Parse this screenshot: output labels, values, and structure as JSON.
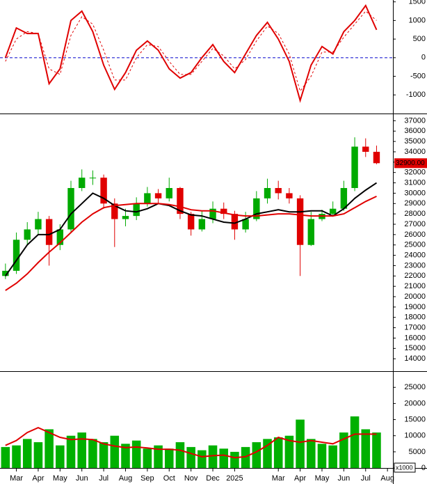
{
  "chart_data": [
    {
      "type": "line",
      "ylim": [
        -1500,
        1550
      ],
      "yticks": [
        -1000,
        -500,
        0,
        500,
        1000,
        1500
      ],
      "reference_line": 0,
      "reference_color": "#0000cc",
      "series": [
        {
          "color": "#e00000",
          "line_style": "solid",
          "values": [
            0,
            800,
            650,
            650,
            -700,
            -300,
            1000,
            1250,
            700,
            -200,
            -850,
            -400,
            200,
            450,
            200,
            -300,
            -550,
            -400,
            0,
            350,
            -100,
            -400,
            100,
            600,
            950,
            500,
            -100,
            -1150,
            -200,
            300,
            100,
            700,
            1000,
            1400,
            750,
            null
          ]
        },
        {
          "color": "#e00000",
          "line_style": "dashed",
          "values": [
            -100,
            500,
            700,
            650,
            -300,
            -450,
            600,
            1100,
            900,
            200,
            -600,
            -600,
            0,
            350,
            300,
            -100,
            -450,
            -450,
            -100,
            250,
            50,
            -300,
            -50,
            450,
            850,
            650,
            100,
            -900,
            -500,
            150,
            150,
            550,
            900,
            1250,
            1000,
            null
          ]
        }
      ]
    },
    {
      "type": "candlestick",
      "ylim": [
        12800,
        37700
      ],
      "yticks": [
        14000,
        15000,
        16000,
        17000,
        18000,
        19000,
        20000,
        21000,
        22000,
        23000,
        24000,
        25000,
        26000,
        27000,
        28000,
        29000,
        30000,
        31000,
        32000,
        33000,
        34000,
        35000,
        36000,
        37000
      ],
      "up_color": "#00aa00",
      "down_color": "#e00000",
      "last_value_label": "32900.00",
      "last_value_color": "#e00000",
      "open": [
        22000,
        22500,
        25500,
        26500,
        27500,
        25000,
        26500,
        30500,
        31500,
        31500,
        29000,
        27500,
        27800,
        29000,
        30000,
        29500,
        30500,
        28000,
        26500,
        27500,
        28500,
        28000,
        26500,
        27500,
        29500,
        30500,
        30000,
        29500,
        25000,
        27500,
        28000,
        28500,
        30500,
        34500,
        34000,
        null
      ],
      "high": [
        23200,
        26200,
        27200,
        28200,
        27800,
        27000,
        31200,
        32300,
        32200,
        31800,
        29500,
        28500,
        29600,
        30600,
        30400,
        31500,
        30600,
        28200,
        28300,
        29200,
        29100,
        28300,
        28200,
        30200,
        31400,
        31200,
        30500,
        29800,
        28200,
        28400,
        29200,
        31200,
        35400,
        35300,
        34600,
        null
      ],
      "low": [
        21700,
        22200,
        25000,
        26000,
        23000,
        24500,
        26200,
        30200,
        30800,
        28500,
        24800,
        26800,
        27400,
        28700,
        29000,
        29200,
        27500,
        25900,
        26300,
        27100,
        27500,
        25500,
        26200,
        27300,
        29000,
        29400,
        29000,
        22000,
        24900,
        27300,
        27800,
        28300,
        30200,
        33500,
        32800,
        null
      ],
      "close": [
        22500,
        25500,
        26500,
        27500,
        25000,
        26500,
        30500,
        31500,
        31500,
        29000,
        27500,
        27800,
        29000,
        30000,
        29500,
        30500,
        28000,
        26500,
        27500,
        28500,
        28000,
        26500,
        27500,
        29500,
        30500,
        30000,
        29500,
        25000,
        27500,
        28000,
        28500,
        30500,
        34500,
        34000,
        32900,
        null
      ],
      "lines": [
        {
          "color": "#000000",
          "values": [
            22000,
            23500,
            25000,
            26000,
            26000,
            26500,
            28000,
            29000,
            30000,
            29500,
            28800,
            28300,
            28200,
            28500,
            29000,
            28800,
            28300,
            27900,
            27800,
            27500,
            27200,
            27100,
            27500,
            28000,
            28200,
            28400,
            28200,
            28200,
            28300,
            28300,
            27800,
            28500,
            29500,
            30300,
            31000,
            null
          ]
        },
        {
          "color": "#e00000",
          "values": [
            20600,
            21300,
            22200,
            23300,
            24300,
            25200,
            26200,
            27200,
            28000,
            28600,
            28800,
            28900,
            29000,
            29000,
            29000,
            28900,
            28700,
            28400,
            28300,
            28300,
            28100,
            27900,
            27800,
            27800,
            27900,
            28000,
            28000,
            27900,
            27800,
            27800,
            27800,
            28000,
            28600,
            29200,
            29700,
            null
          ]
        }
      ]
    },
    {
      "type": "bar",
      "ylim": [
        0,
        29800
      ],
      "yticks": [
        0,
        5000,
        10000,
        15000,
        20000,
        25000
      ],
      "unit_label": "x1000",
      "color": "#00b000",
      "categories": [
        null,
        "Mar",
        null,
        "Apr",
        null,
        "May",
        null,
        "Jun",
        null,
        "Jul",
        null,
        "Aug",
        null,
        "Sep",
        null,
        "Oct",
        null,
        "Nov",
        null,
        "Dec",
        null,
        "2025",
        null,
        null,
        null,
        "Mar",
        null,
        "Apr",
        null,
        "May",
        null,
        "Jun",
        null,
        "Jul",
        null,
        "Aug"
      ],
      "values": [
        6500,
        7000,
        9000,
        8000,
        12000,
        7000,
        10000,
        11000,
        9000,
        8000,
        10000,
        7500,
        8500,
        6000,
        7000,
        6000,
        8000,
        6500,
        5500,
        7000,
        6000,
        5000,
        6500,
        8000,
        9000,
        9500,
        10000,
        15000,
        9000,
        7500,
        7000,
        11000,
        16000,
        12000,
        11000,
        null
      ],
      "lines": [
        {
          "color": "#e00000",
          "values": [
            7000,
            8500,
            11000,
            12500,
            11000,
            9500,
            8800,
            9000,
            8800,
            7500,
            6800,
            6300,
            6500,
            6200,
            5800,
            5800,
            5500,
            4500,
            3500,
            3800,
            4000,
            3200,
            3500,
            5000,
            7000,
            9500,
            8500,
            8000,
            8500,
            8000,
            7500,
            9000,
            10500,
            10500,
            10500,
            null
          ]
        }
      ]
    }
  ]
}
